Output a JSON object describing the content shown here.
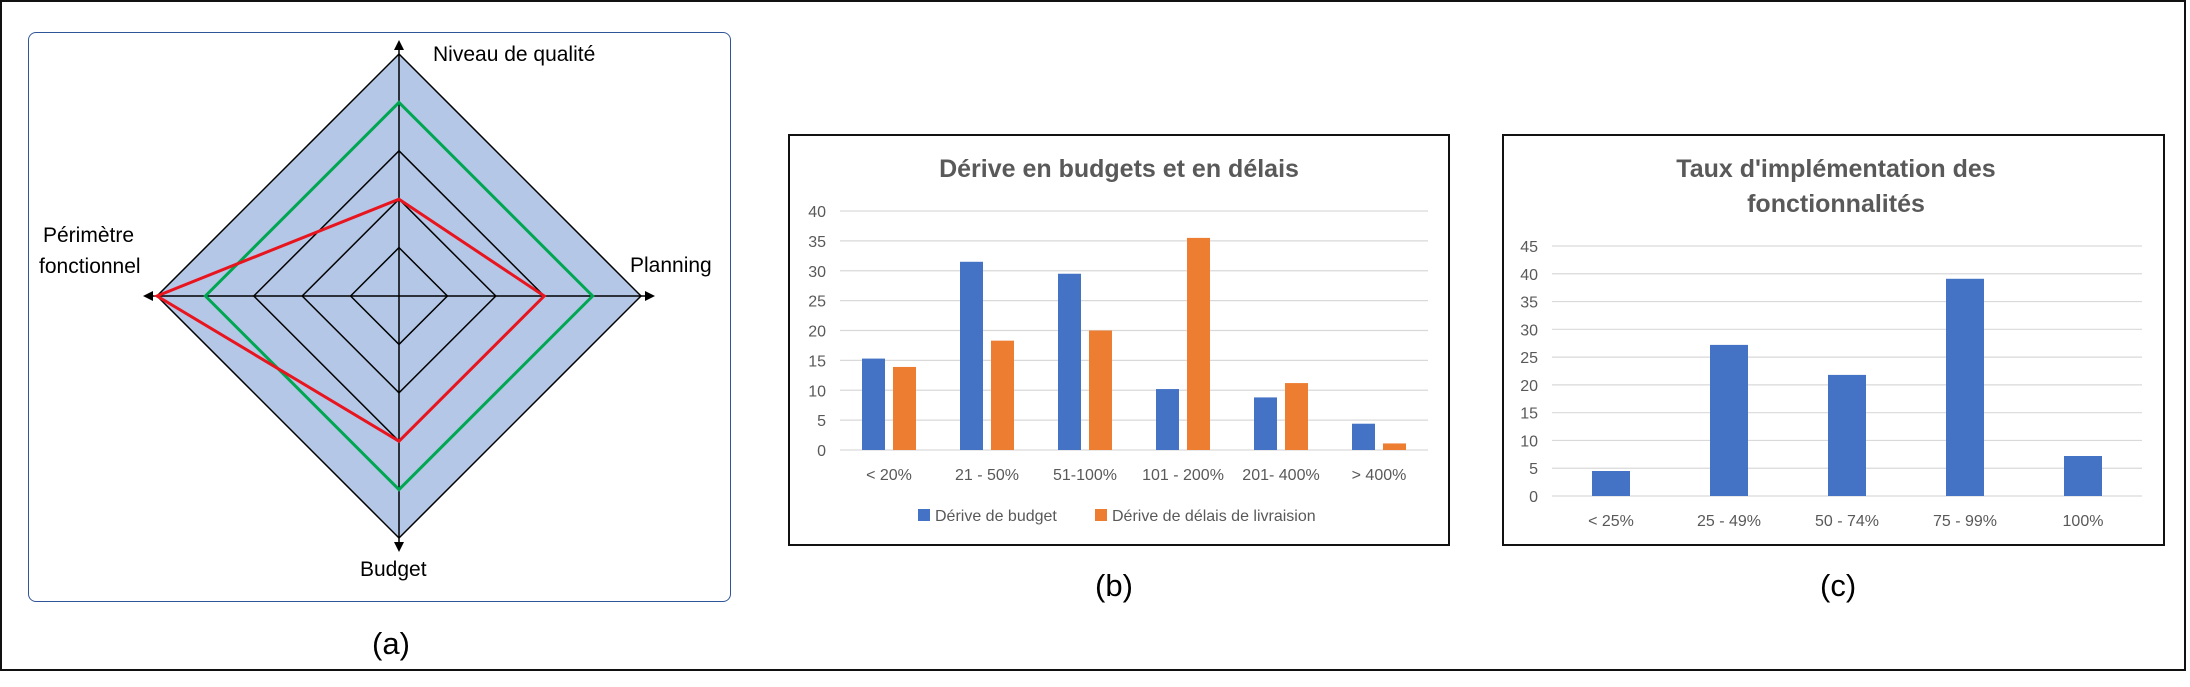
{
  "colors": {
    "radar_fill": "#B4C7E7",
    "radar_border": "#2F5597",
    "radar_green": "#00A651",
    "radar_red": "#E8141E",
    "bar_blue": "#4472C4",
    "bar_orange": "#ED7D31",
    "gridline": "#D9D9D9",
    "title_gray": "#595959"
  },
  "captions": {
    "a": "(a)",
    "b": "(b)",
    "c": "(c)"
  },
  "chart_data": [
    {
      "id": "a",
      "type": "radar",
      "axes": [
        "Niveau de qualité",
        "Planning",
        "Budget",
        "Périmètre fonctionnel"
      ],
      "scale_max": 5,
      "rings": 5,
      "series": [
        {
          "color": "green",
          "values": [
            4,
            4,
            4,
            4
          ]
        },
        {
          "color": "red",
          "values": [
            2,
            3,
            3,
            5
          ]
        }
      ]
    },
    {
      "id": "b",
      "type": "bar",
      "title": "Dérive en budgets et en délais",
      "categories": [
        "< 20%",
        "21 - 50%",
        "51-100%",
        "101 - 200%",
        "201- 400%",
        "> 400%"
      ],
      "series": [
        {
          "name": "Dérive de budget",
          "values": [
            15.3,
            31.5,
            29.5,
            10.2,
            8.8,
            4.4
          ]
        },
        {
          "name": "Dérive de délais de livraision",
          "values": [
            13.9,
            18.3,
            20,
            35.5,
            11.2,
            1.1
          ]
        }
      ],
      "ylim": [
        0,
        40
      ],
      "yticks": [
        0,
        5,
        10,
        15,
        20,
        25,
        30,
        35,
        40
      ],
      "grid": true,
      "legend": "bottom"
    },
    {
      "id": "c",
      "type": "bar",
      "title_lines": [
        "Taux d'implémentation des",
        "fonctionnalités"
      ],
      "categories": [
        "< 25%",
        "25 - 49%",
        "50 - 74%",
        "75 - 99%",
        "100%"
      ],
      "series": [
        {
          "values": [
            4.5,
            27.2,
            21.8,
            39.1,
            7.2
          ]
        }
      ],
      "ylim": [
        0,
        45
      ],
      "yticks": [
        0,
        5,
        10,
        15,
        20,
        25,
        30,
        35,
        40,
        45
      ],
      "grid": true
    }
  ]
}
